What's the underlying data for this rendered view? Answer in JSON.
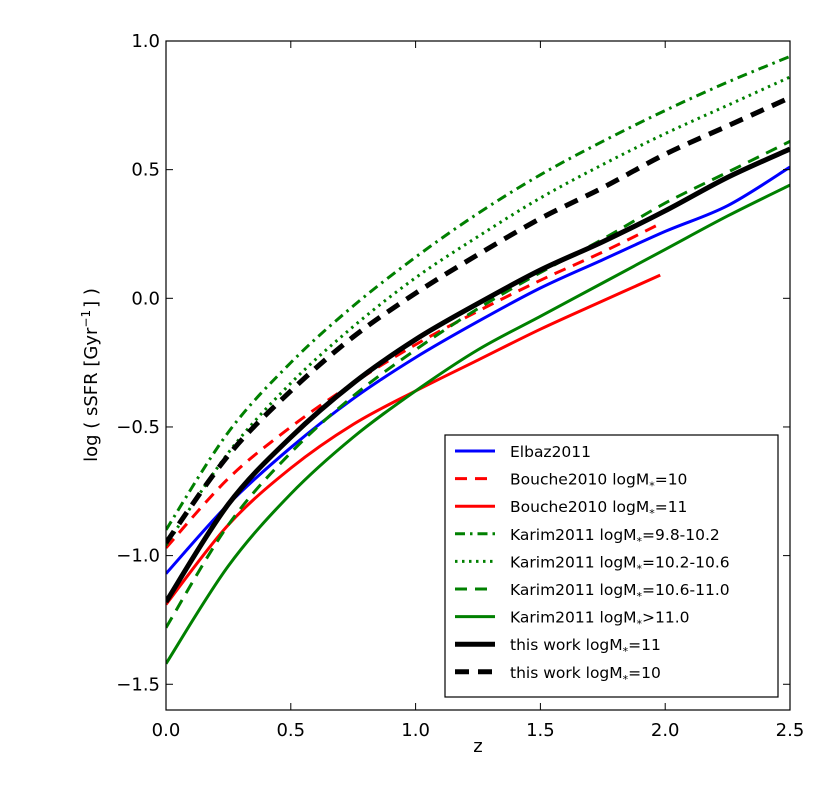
{
  "chart_data": {
    "type": "line",
    "title": "",
    "xlabel": "z",
    "ylabel": "log ( sSFR [Gyr",
    "ylabel_sup": "−1",
    "ylabel_end": "] )",
    "xlim": [
      0.0,
      2.5
    ],
    "ylim": [
      -1.6,
      1.0
    ],
    "x_ticks": [
      0.0,
      0.5,
      1.0,
      1.5,
      2.0,
      2.5
    ],
    "x_tick_labels": [
      "0.0",
      "0.5",
      "1.0",
      "1.5",
      "2.0",
      "2.5"
    ],
    "y_ticks": [
      -1.5,
      -1.0,
      -0.5,
      0.0,
      0.5,
      1.0
    ],
    "y_tick_labels": [
      "−1.5",
      "−1.0",
      "−0.5",
      "0.0",
      "0.5",
      "1.0"
    ],
    "grid": false,
    "legend_position": "lower-right",
    "series": [
      {
        "name": "Elbaz2011",
        "label_main": "Elbaz2011",
        "label_sub": "",
        "label_end": "",
        "color": "#0000ff",
        "style": "solid",
        "width": 3,
        "x": [
          0.0,
          0.25,
          0.5,
          0.75,
          1.0,
          1.25,
          1.5,
          1.75,
          2.0,
          2.25,
          2.5
        ],
        "y": [
          -1.07,
          -0.8,
          -0.58,
          -0.39,
          -0.23,
          -0.09,
          0.04,
          0.15,
          0.26,
          0.36,
          0.51
        ]
      },
      {
        "name": "Bouche2010 logM*=10",
        "label_main": "Bouche2010 logM",
        "label_sub": "*",
        "label_end": "=10",
        "color": "#ff0000",
        "style": "dashed",
        "width": 3,
        "x": [
          0.0,
          0.25,
          0.5,
          0.75,
          1.0,
          1.25,
          1.5,
          1.75,
          1.98
        ],
        "y": [
          -0.97,
          -0.7,
          -0.5,
          -0.33,
          -0.18,
          -0.05,
          0.07,
          0.18,
          0.29
        ]
      },
      {
        "name": "Bouche2010 logM*=11",
        "label_main": "Bouche2010 logM",
        "label_sub": "*",
        "label_end": "=11",
        "color": "#ff0000",
        "style": "solid",
        "width": 3,
        "x": [
          0.0,
          0.25,
          0.5,
          0.75,
          1.0,
          1.25,
          1.5,
          1.75,
          1.98
        ],
        "y": [
          -1.19,
          -0.88,
          -0.66,
          -0.49,
          -0.36,
          -0.24,
          -0.12,
          -0.01,
          0.09
        ]
      },
      {
        "name": "Karim2011 logM*=9.8-10.2",
        "label_main": "Karim2011 logM",
        "label_sub": "*",
        "label_end": "=9.8-10.2",
        "color": "#008000",
        "style": "dashdot",
        "width": 3,
        "x": [
          0.0,
          0.25,
          0.5,
          0.75,
          1.0,
          1.25,
          1.5,
          1.75,
          2.0,
          2.25,
          2.5
        ],
        "y": [
          -0.9,
          -0.52,
          -0.25,
          -0.03,
          0.16,
          0.33,
          0.48,
          0.61,
          0.73,
          0.84,
          0.94
        ]
      },
      {
        "name": "Karim2011 logM*=10.2-10.6",
        "label_main": "Karim2011 logM",
        "label_sub": "*",
        "label_end": "=10.2-10.6",
        "color": "#008000",
        "style": "dotted",
        "width": 3,
        "x": [
          0.0,
          0.25,
          0.5,
          0.75,
          1.0,
          1.25,
          1.5,
          1.75,
          2.0,
          2.25,
          2.5
        ],
        "y": [
          -0.96,
          -0.6,
          -0.33,
          -0.11,
          0.08,
          0.24,
          0.39,
          0.52,
          0.64,
          0.75,
          0.86
        ]
      },
      {
        "name": "Karim2011 logM*=10.6-11.0",
        "label_main": "Karim2011 logM",
        "label_sub": "*",
        "label_end": "=10.6-11.0",
        "color": "#008000",
        "style": "dashed",
        "width": 3,
        "x": [
          0.0,
          0.25,
          0.5,
          0.75,
          1.0,
          1.25,
          1.5,
          1.75,
          2.0,
          2.25,
          2.5
        ],
        "y": [
          -1.28,
          -0.88,
          -0.6,
          -0.38,
          -0.2,
          -0.04,
          0.1,
          0.23,
          0.37,
          0.49,
          0.61
        ]
      },
      {
        "name": "Karim2011 logM*>11.0",
        "label_main": "Karim2011 logM",
        "label_sub": "*",
        "label_end": ">11.0",
        "color": "#008000",
        "style": "solid",
        "width": 3,
        "x": [
          0.0,
          0.25,
          0.5,
          0.75,
          1.0,
          1.25,
          1.5,
          1.75,
          2.0,
          2.25,
          2.5
        ],
        "y": [
          -1.42,
          -1.04,
          -0.76,
          -0.54,
          -0.36,
          -0.2,
          -0.07,
          0.06,
          0.19,
          0.32,
          0.44
        ]
      },
      {
        "name": "this work logM*=11",
        "label_main": "this work logM",
        "label_sub": "*",
        "label_end": "=11",
        "color": "#000000",
        "style": "solid",
        "width": 5,
        "x": [
          0.0,
          0.25,
          0.5,
          0.75,
          1.0,
          1.25,
          1.5,
          1.75,
          2.0,
          2.25,
          2.5
        ],
        "y": [
          -1.18,
          -0.8,
          -0.54,
          -0.33,
          -0.16,
          -0.02,
          0.11,
          0.22,
          0.34,
          0.47,
          0.58
        ]
      },
      {
        "name": "this work logM*=10",
        "label_main": "this work logM",
        "label_sub": "*",
        "label_end": "=10",
        "color": "#000000",
        "style": "dashed",
        "width": 5,
        "x": [
          0.0,
          0.25,
          0.5,
          0.75,
          1.0,
          1.25,
          1.5,
          1.75,
          2.0,
          2.25,
          2.5
        ],
        "y": [
          -0.95,
          -0.61,
          -0.36,
          -0.15,
          0.02,
          0.17,
          0.31,
          0.43,
          0.56,
          0.67,
          0.78
        ]
      }
    ]
  }
}
